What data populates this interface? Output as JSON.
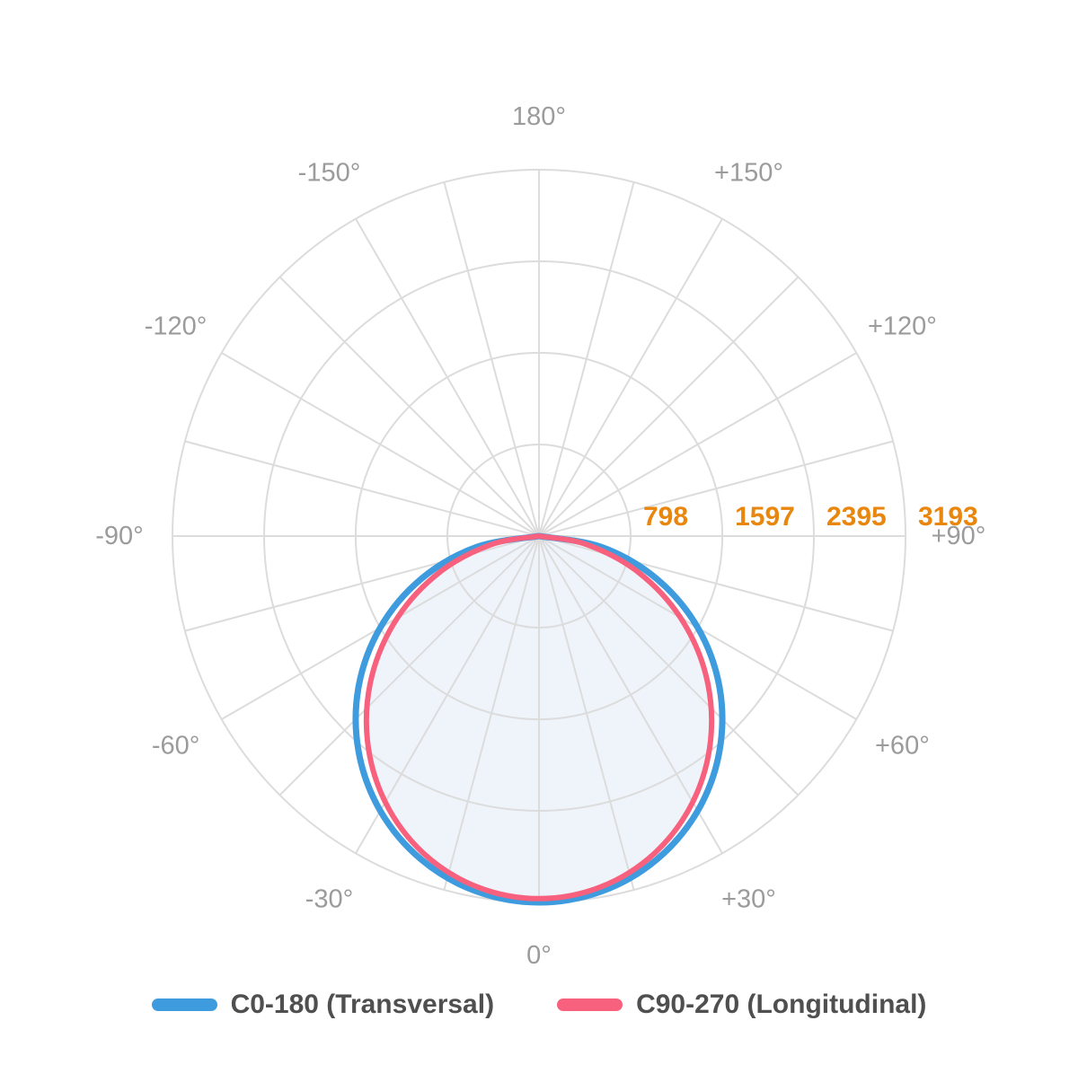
{
  "chart_data": {
    "type": "polar",
    "kind": "photometric-light-distribution",
    "r_max": 3193,
    "radial_ticks": [
      {
        "value": 798,
        "label": "798"
      },
      {
        "value": 1597,
        "label": "1597"
      },
      {
        "value": 2395,
        "label": "2395"
      },
      {
        "value": 3193,
        "label": "3193"
      }
    ],
    "grid_angle_step_deg": 15,
    "angle_tick_labels": [
      {
        "angle": 0,
        "label": "0°"
      },
      {
        "angle": 30,
        "label": "+30°"
      },
      {
        "angle": 60,
        "label": "+60°"
      },
      {
        "angle": 90,
        "label": "+90°"
      },
      {
        "angle": 120,
        "label": "+120°"
      },
      {
        "angle": 150,
        "label": "+150°"
      },
      {
        "angle": 180,
        "label": "180°"
      },
      {
        "angle": -150,
        "label": "-150°"
      },
      {
        "angle": -120,
        "label": "-120°"
      },
      {
        "angle": -90,
        "label": "-90°"
      },
      {
        "angle": -60,
        "label": "-60°"
      },
      {
        "angle": -30,
        "label": "-30°"
      }
    ],
    "series": [
      {
        "name": "C0-180 (Transversal)",
        "color": "#3E9CDE",
        "angles_deg": [
          -90,
          -80,
          -70,
          -60,
          -50,
          -40,
          -30,
          -20,
          -10,
          0,
          10,
          20,
          30,
          40,
          50,
          60,
          70,
          80,
          90
        ],
        "values": [
          0,
          554,
          1092,
          1597,
          2053,
          2446,
          2765,
          3000,
          3144,
          3193,
          3144,
          3000,
          2765,
          2446,
          2053,
          1597,
          1092,
          554,
          0
        ]
      },
      {
        "name": "C90-270 (Longitudinal)",
        "color": "#F8617E",
        "fill": "#EFF4FB",
        "angles_deg": [
          -90,
          -80,
          -70,
          -60,
          -50,
          -40,
          -30,
          -20,
          -10,
          0,
          10,
          20,
          30,
          40,
          50,
          60,
          70,
          80,
          90
        ],
        "values": [
          0,
          422,
          920,
          1423,
          1901,
          2326,
          2678,
          2942,
          3105,
          3160,
          3105,
          2942,
          2678,
          2326,
          1901,
          1423,
          920,
          422,
          0
        ]
      }
    ],
    "legend": [
      {
        "label": "C0-180 (Transversal)",
        "color": "#3E9CDE"
      },
      {
        "label": "C90-270 (Longitudinal)",
        "color": "#F8617E"
      }
    ]
  },
  "colors": {
    "grid": "#DCDCDC",
    "angle_label": "#9B9B9B",
    "tick_label": "#E8860D",
    "legend_text": "#4F4F4F",
    "background": "#FFFFFF"
  }
}
